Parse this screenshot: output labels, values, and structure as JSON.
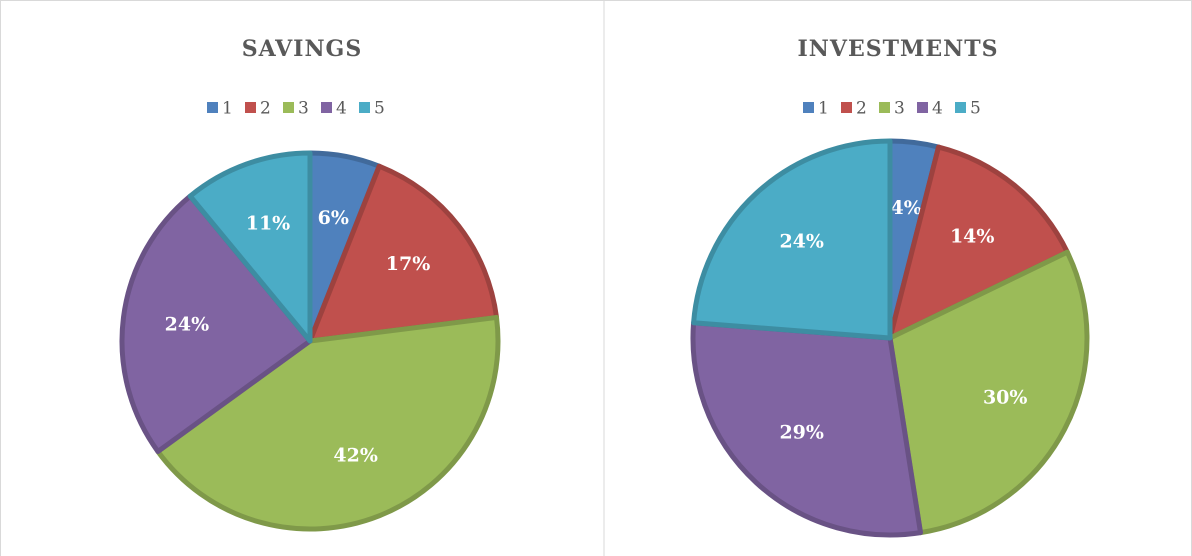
{
  "chart_data": [
    {
      "type": "pie",
      "title": "SAVINGS",
      "categories": [
        "1",
        "2",
        "3",
        "4",
        "5"
      ],
      "values": [
        6,
        17,
        42,
        24,
        11
      ],
      "value_labels": [
        "6%",
        "17%",
        "42%",
        "24%",
        "11%"
      ],
      "colors": [
        "#4f81bd",
        "#c0504d",
        "#9bbb59",
        "#8064a2",
        "#4bacc6"
      ]
    },
    {
      "type": "pie",
      "title": "INVESTMENTS",
      "categories": [
        "1",
        "2",
        "3",
        "4",
        "5"
      ],
      "values": [
        4,
        14,
        30,
        29,
        24
      ],
      "value_labels": [
        "4%",
        "14%",
        "30%",
        "29%",
        "24%"
      ],
      "colors": [
        "#4f81bd",
        "#c0504d",
        "#9bbb59",
        "#8064a2",
        "#4bacc6"
      ]
    }
  ]
}
